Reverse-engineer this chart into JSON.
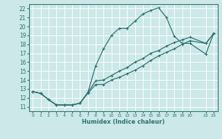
{
  "xlabel": "Humidex (Indice chaleur)",
  "bg_color": "#cce8e8",
  "grid_color": "#ffffff",
  "line_color": "#2d7070",
  "spine_color": "#2d7070",
  "xlim": [
    -0.5,
    23.5
  ],
  "ylim": [
    10.5,
    22.5
  ],
  "xticks": [
    0,
    1,
    2,
    3,
    4,
    5,
    6,
    7,
    8,
    9,
    10,
    11,
    12,
    13,
    14,
    15,
    16,
    17,
    18,
    19,
    20,
    22,
    23
  ],
  "xtick_labels": [
    "0",
    "1",
    "2",
    "3",
    "4",
    "5",
    "6",
    "7",
    "8",
    "9",
    "10",
    "11",
    "12",
    "13",
    "14",
    "15",
    "16",
    "17",
    "18",
    "19",
    "20",
    "22",
    "23"
  ],
  "yticks": [
    11,
    12,
    13,
    14,
    15,
    16,
    17,
    18,
    19,
    20,
    21,
    22
  ],
  "line1_x": [
    0,
    1,
    2,
    3,
    4,
    5,
    6,
    7,
    8,
    9,
    10,
    11,
    12,
    13,
    14,
    15,
    16,
    17,
    18,
    19,
    20,
    22,
    23
  ],
  "line1_y": [
    12.7,
    12.5,
    11.8,
    11.2,
    11.2,
    11.2,
    11.4,
    12.6,
    15.6,
    17.5,
    19.0,
    19.8,
    19.8,
    20.6,
    21.4,
    21.8,
    22.1,
    21.0,
    18.9,
    18.1,
    18.1,
    16.9,
    19.2
  ],
  "line2_x": [
    0,
    1,
    2,
    3,
    4,
    5,
    6,
    7,
    8,
    9,
    10,
    11,
    12,
    13,
    14,
    15,
    16,
    17,
    18,
    19,
    20,
    22,
    23
  ],
  "line2_y": [
    12.7,
    12.5,
    11.8,
    11.2,
    11.2,
    11.2,
    11.4,
    12.6,
    13.9,
    14.0,
    14.5,
    15.0,
    15.4,
    16.0,
    16.4,
    17.0,
    17.3,
    17.8,
    18.2,
    18.5,
    18.8,
    18.1,
    19.2
  ],
  "line3_x": [
    0,
    1,
    2,
    3,
    4,
    5,
    6,
    7,
    8,
    9,
    10,
    11,
    12,
    13,
    14,
    15,
    16,
    17,
    18,
    19,
    20,
    22,
    23
  ],
  "line3_y": [
    12.7,
    12.5,
    11.8,
    11.2,
    11.2,
    11.2,
    11.4,
    12.5,
    13.5,
    13.5,
    14.0,
    14.3,
    14.7,
    15.1,
    15.6,
    16.2,
    16.7,
    17.1,
    17.5,
    18.0,
    18.4,
    18.1,
    19.2
  ]
}
